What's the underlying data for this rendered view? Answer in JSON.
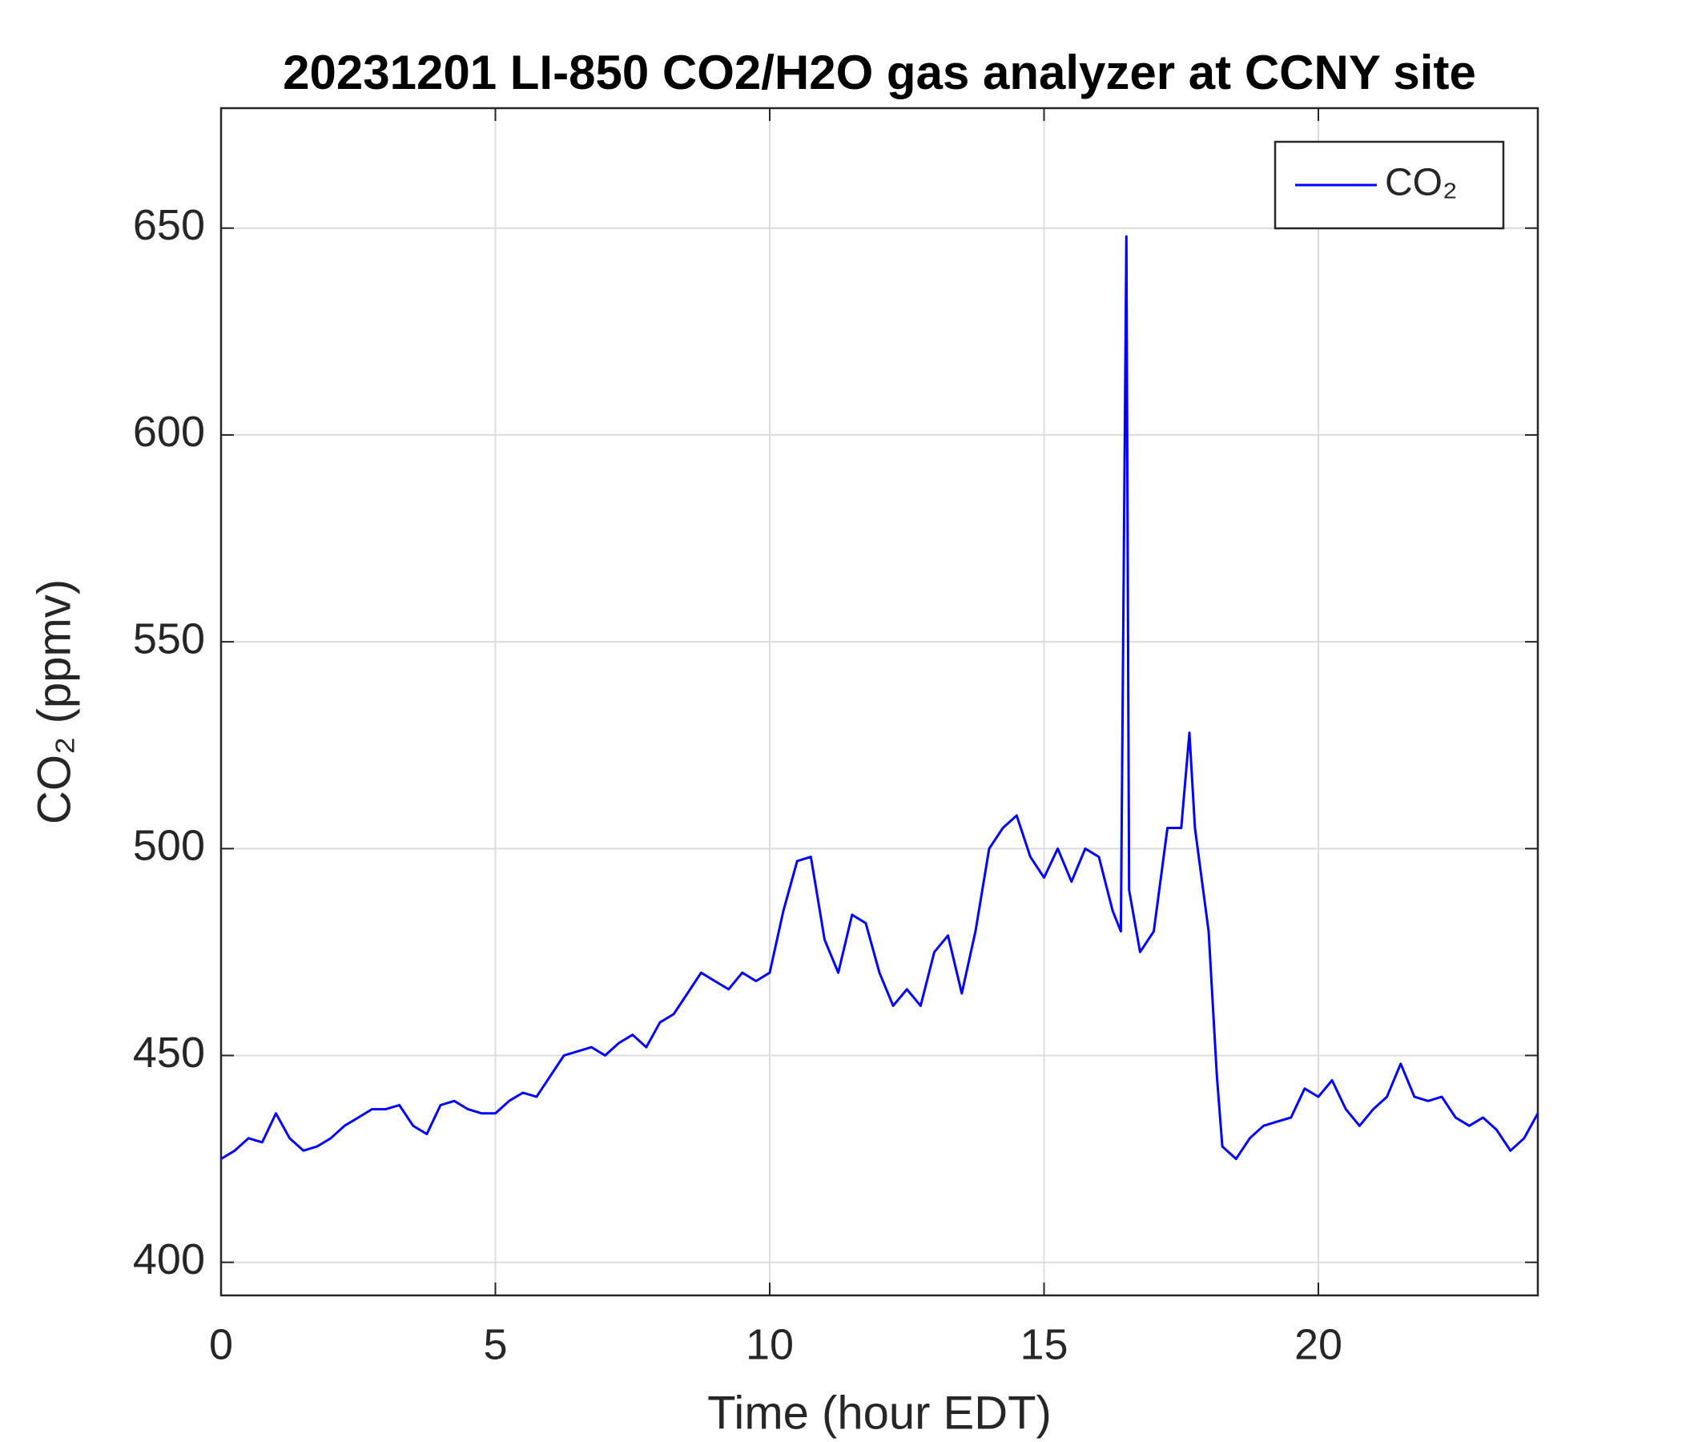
{
  "chart_data": {
    "type": "line",
    "title": "20231201 LI-850 CO2/H2O gas analyzer at CCNY site",
    "x_label": "Time (hour EDT)",
    "y_label": "CO₂ (ppmv)",
    "x": [
      0,
      0.25,
      0.5,
      0.75,
      1.0,
      1.25,
      1.5,
      1.75,
      2.0,
      2.25,
      2.5,
      2.75,
      3.0,
      3.25,
      3.5,
      3.75,
      4.0,
      4.25,
      4.5,
      4.75,
      5.0,
      5.25,
      5.5,
      5.75,
      6.0,
      6.25,
      6.5,
      6.75,
      7.0,
      7.25,
      7.5,
      7.75,
      8.0,
      8.25,
      8.5,
      8.75,
      9.0,
      9.25,
      9.5,
      9.75,
      10.0,
      10.25,
      10.5,
      10.75,
      11.0,
      11.25,
      11.5,
      11.75,
      12.0,
      12.25,
      12.5,
      12.75,
      13.0,
      13.25,
      13.5,
      13.75,
      14.0,
      14.25,
      14.5,
      14.75,
      15.0,
      15.25,
      15.5,
      15.75,
      16.0,
      16.25,
      16.4,
      16.5,
      16.55,
      16.75,
      17.0,
      17.25,
      17.5,
      17.65,
      17.75,
      18.0,
      18.15,
      18.25,
      18.5,
      18.75,
      19.0,
      19.25,
      19.5,
      19.75,
      20.0,
      20.25,
      20.5,
      20.75,
      21.0,
      21.25,
      21.5,
      21.75,
      22.0,
      22.25,
      22.5,
      22.75,
      23.0,
      23.25,
      23.5,
      23.75,
      24.0
    ],
    "series": [
      {
        "name": "CO₂",
        "color": "#0000ff",
        "values": [
          425,
          427,
          430,
          429,
          436,
          430,
          427,
          428,
          430,
          433,
          435,
          437,
          437,
          438,
          433,
          431,
          438,
          439,
          437,
          436,
          436,
          439,
          441,
          440,
          445,
          450,
          451,
          452,
          450,
          453,
          455,
          452,
          458,
          460,
          465,
          470,
          468,
          466,
          470,
          468,
          470,
          485,
          497,
          498,
          478,
          470,
          484,
          482,
          470,
          462,
          466,
          462,
          475,
          479,
          465,
          480,
          500,
          505,
          508,
          498,
          493,
          500,
          492,
          500,
          498,
          485,
          480,
          648,
          490,
          475,
          480,
          505,
          505,
          528,
          505,
          480,
          445,
          428,
          425,
          430,
          433,
          434,
          435,
          442,
          440,
          444,
          437,
          433,
          437,
          440,
          448,
          440,
          439,
          440,
          435,
          433,
          435,
          432,
          427,
          430,
          436
        ]
      }
    ],
    "xlim": [
      0,
      24
    ],
    "ylim": [
      392,
      679
    ],
    "xticks": [
      0,
      5,
      10,
      15,
      20
    ],
    "yticks": [
      400,
      450,
      500,
      550,
      600,
      650
    ],
    "grid": true,
    "legend": "upper right"
  }
}
